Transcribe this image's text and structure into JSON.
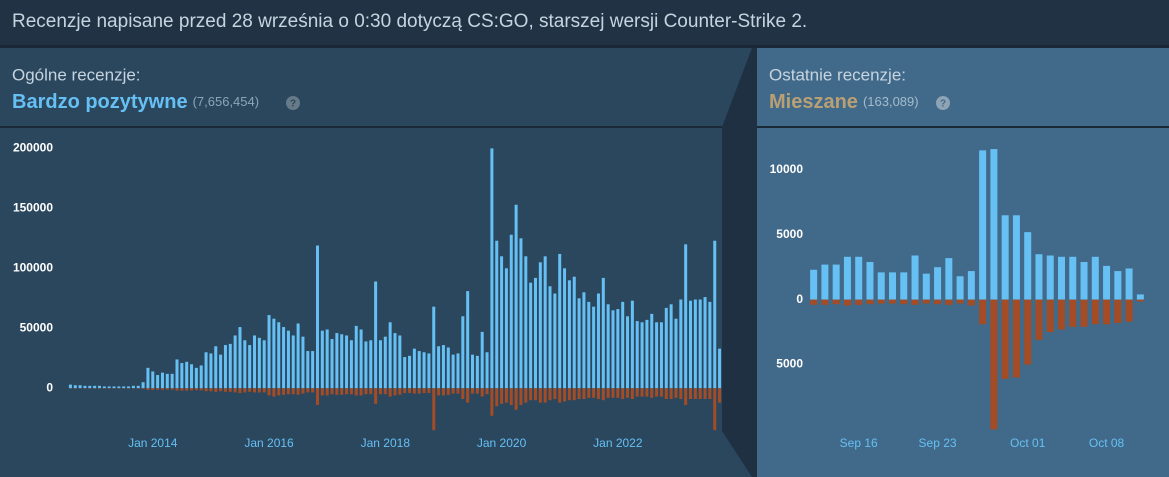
{
  "notice": "Recenzje napisane przed 28 września o 0:30 dotyczą CS:GO, starszej wersji Counter-Strike 2.",
  "overall": {
    "label": "Ogólne recenzje:",
    "summary": "Bardzo pozytywne",
    "count": "(7,656,454)",
    "help": "?"
  },
  "recent": {
    "label": "Ostatnie recenzje:",
    "summary": "Mieszane",
    "count": "(163,089)",
    "help": "?"
  },
  "chart_data": [
    {
      "type": "bar",
      "categories": [
        null,
        null,
        null,
        null,
        null,
        null,
        null,
        null,
        null,
        null,
        null,
        null,
        null,
        null,
        null,
        null,
        null,
        "Jan 2014",
        null,
        null,
        null,
        null,
        null,
        null,
        null,
        null,
        null,
        null,
        null,
        null,
        null,
        null,
        null,
        null,
        null,
        null,
        null,
        null,
        null,
        null,
        null,
        "Jan 2016",
        null,
        null,
        null,
        null,
        null,
        null,
        null,
        null,
        null,
        null,
        null,
        null,
        null,
        null,
        null,
        null,
        null,
        null,
        null,
        null,
        null,
        null,
        null,
        "Jan 2018",
        null,
        null,
        null,
        null,
        null,
        null,
        null,
        null,
        null,
        null,
        null,
        null,
        null,
        null,
        null,
        null,
        null,
        null,
        null,
        null,
        null,
        null,
        null,
        "Jan 2020",
        null,
        null,
        null,
        null,
        null,
        null,
        null,
        null,
        null,
        null,
        null,
        null,
        null,
        null,
        null,
        null,
        null,
        null,
        null,
        null,
        null,
        null,
        null,
        "Jan 2022",
        null,
        null,
        null,
        null,
        null,
        null,
        null,
        null,
        null,
        null,
        null,
        null,
        null,
        null,
        null,
        null,
        null,
        null,
        null,
        null,
        null
      ],
      "series": [
        {
          "color": "#66c0f4",
          "values": [
            3000,
            2500,
            2500,
            2000,
            2000,
            2000,
            2000,
            1500,
            1500,
            1500,
            1500,
            1500,
            1500,
            2000,
            2000,
            5000,
            17000,
            14000,
            11000,
            13000,
            12000,
            12000,
            24000,
            21000,
            22000,
            20000,
            17000,
            19000,
            30000,
            29000,
            35000,
            28000,
            36000,
            37000,
            44000,
            51000,
            40000,
            36000,
            44000,
            42000,
            40000,
            61000,
            58000,
            55000,
            51000,
            48000,
            44000,
            54000,
            43000,
            31000,
            31000,
            119000,
            48000,
            49000,
            41000,
            46000,
            45000,
            44000,
            40000,
            52000,
            49000,
            39000,
            40000,
            89000,
            40000,
            43000,
            55000,
            46000,
            44000,
            26000,
            27000,
            33000,
            31000,
            30000,
            29000,
            68000,
            35000,
            36000,
            34000,
            28000,
            29000,
            60000,
            81000,
            28000,
            27000,
            47000,
            30000,
            200000,
            123000,
            110000,
            100000,
            128000,
            153000,
            125000,
            110000,
            88000,
            92000,
            105000,
            110000,
            85000,
            79000,
            112000,
            100000,
            90000,
            93000,
            75000,
            80000,
            72000,
            68000,
            79000,
            92000,
            70000,
            65000,
            66000,
            72000,
            60000,
            73000,
            56000,
            55000,
            57000,
            62000,
            55000,
            55000,
            67000,
            70000,
            58000,
            74000,
            120000,
            73000,
            74000,
            74000,
            76000,
            72000,
            123000,
            33000
          ]
        },
        {
          "color": "#a34c25",
          "values": [
            -300,
            -300,
            -300,
            -300,
            -300,
            -300,
            -300,
            -300,
            -300,
            -300,
            -300,
            -300,
            -300,
            -300,
            -300,
            -500,
            -1500,
            -1500,
            -1200,
            -1300,
            -1200,
            -1200,
            -2000,
            -2000,
            -2000,
            -1800,
            -1600,
            -1800,
            -2500,
            -2500,
            -3000,
            -2500,
            -3000,
            -3000,
            -3500,
            -4000,
            -3500,
            -3000,
            -3500,
            -3500,
            -3500,
            -6000,
            -7000,
            -6000,
            -5500,
            -5000,
            -5000,
            -5500,
            -4500,
            -3500,
            -3500,
            -14000,
            -6000,
            -6000,
            -5000,
            -5500,
            -5500,
            -5000,
            -5000,
            -6000,
            -6000,
            -5000,
            -5000,
            -13000,
            -5000,
            -5000,
            -7000,
            -6000,
            -5500,
            -4000,
            -4000,
            -4500,
            -4500,
            -4000,
            -4000,
            -35000,
            -6000,
            -6000,
            -5500,
            -4500,
            -4500,
            -9000,
            -12000,
            -4500,
            -4500,
            -7000,
            -5000,
            -23000,
            -15000,
            -13000,
            -12000,
            -14000,
            -18000,
            -14000,
            -12000,
            -10000,
            -10000,
            -12000,
            -12000,
            -10000,
            -9000,
            -12000,
            -11000,
            -10000,
            -10000,
            -9000,
            -9000,
            -8000,
            -8000,
            -9000,
            -10000,
            -8000,
            -8000,
            -8000,
            -9000,
            -8000,
            -9000,
            -7000,
            -7000,
            -7000,
            -8000,
            -7000,
            -7000,
            -9000,
            -9000,
            -8000,
            -9000,
            -14000,
            -9000,
            -9000,
            -9000,
            -9000,
            -9000,
            -35000,
            -12000
          ]
        }
      ],
      "ylim": [
        -36500,
        207000
      ],
      "yticks": [
        0,
        50000,
        100000,
        150000,
        200000
      ]
    },
    {
      "type": "bar",
      "categories": [
        null,
        null,
        null,
        null,
        "Sep 16",
        null,
        null,
        null,
        null,
        null,
        null,
        "Sep 23",
        null,
        null,
        null,
        null,
        null,
        null,
        null,
        "Oct 01",
        null,
        null,
        null,
        null,
        null,
        null,
        "Oct 08",
        null,
        null,
        null
      ],
      "series": [
        {
          "color": "#66c0f4",
          "values": [
            2300,
            2700,
            2700,
            3300,
            3300,
            2900,
            2100,
            2100,
            2100,
            3400,
            2000,
            2500,
            3200,
            1800,
            2200,
            11500,
            11600,
            6500,
            6500,
            5200,
            3500,
            3400,
            3300,
            3300,
            2900,
            3300,
            2600,
            2200,
            2400,
            400
          ]
        },
        {
          "color": "#a34c25",
          "values": [
            -400,
            -400,
            -350,
            -450,
            -400,
            -350,
            -300,
            -300,
            -350,
            -400,
            -300,
            -350,
            -400,
            -300,
            -450,
            -1900,
            -10000,
            -6100,
            -6000,
            -5000,
            -3100,
            -2500,
            -2300,
            -2100,
            -2100,
            -1900,
            -1900,
            -1800,
            -1700,
            -150
          ]
        }
      ],
      "ylim": [
        -10200,
        12300
      ],
      "yticks": [
        {
          "value": -5000,
          "label": "5000"
        },
        0,
        5000,
        10000
      ]
    }
  ]
}
